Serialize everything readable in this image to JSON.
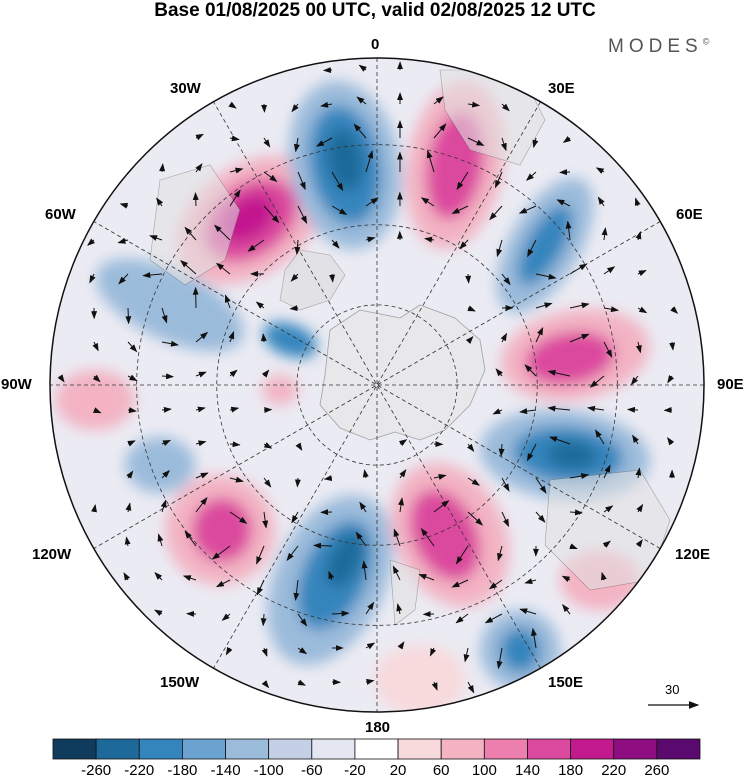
{
  "title": "Base 01/08/2025 00 UTC, valid 02/08/2025 12 UTC",
  "brand": "MODES",
  "brand_mark": "©",
  "longitude_labels": {
    "lon_0": "0",
    "lon_30e": "30E",
    "lon_60e": "60E",
    "lon_90e": "90E",
    "lon_120e": "120E",
    "lon_150e": "150E",
    "lon_180": "180",
    "lon_150w": "150W",
    "lon_120w": "120W",
    "lon_90w": "90W",
    "lon_60w": "60W",
    "lon_30w": "30W"
  },
  "vector_reference": {
    "label": "30"
  },
  "colorbar": {
    "tick_labels": [
      "-260",
      "-220",
      "-180",
      "-140",
      "-100",
      "-60",
      "-20",
      "20",
      "60",
      "100",
      "140",
      "180",
      "220",
      "260"
    ],
    "colors": [
      "#0f3b5c",
      "#1d6a9a",
      "#3585bd",
      "#6aa3cf",
      "#9bbbdb",
      "#c4d0e6",
      "#e4e6f1",
      "#ffffff",
      "#f8d9dc",
      "#f3b3c3",
      "#ec7fae",
      "#db4a9e",
      "#c2198f",
      "#8e0e82",
      "#5a0a6e"
    ]
  },
  "colors": {
    "land": "#ececec",
    "coast": "#555555",
    "grid": "#333333",
    "arrow": "#111111"
  }
}
